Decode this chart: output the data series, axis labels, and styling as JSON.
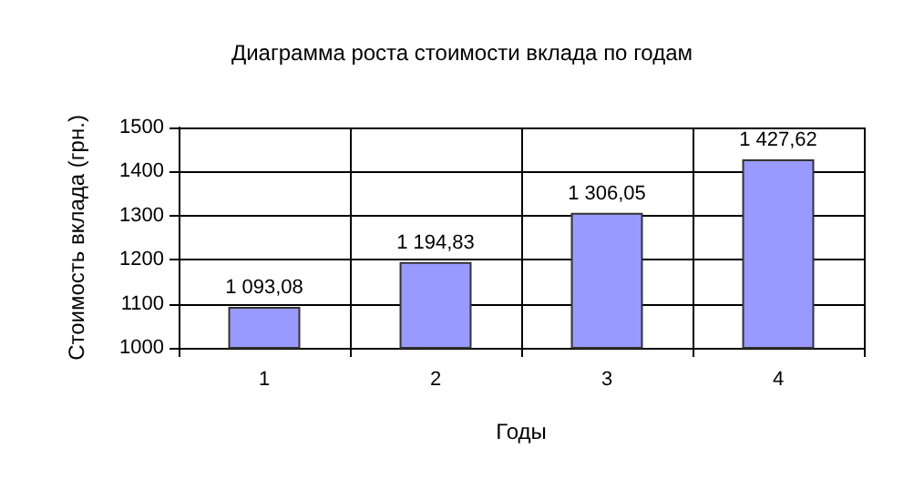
{
  "chart_data": {
    "type": "bar",
    "title": "Диаграмма роста стоимости вклада по годам",
    "xlabel": "Годы",
    "ylabel": "Стоимость вклада (грн.)",
    "categories": [
      "1",
      "2",
      "3",
      "4"
    ],
    "values": [
      1093.08,
      1194.83,
      1306.05,
      1427.62
    ],
    "value_labels": [
      "1 093,08",
      "1 194,83",
      "1 306,05",
      "1 427,62"
    ],
    "color": "#9999ff",
    "ylim": [
      1000,
      1500
    ],
    "yticks": [
      1000,
      1100,
      1200,
      1300,
      1400,
      1500
    ],
    "grid": true
  }
}
